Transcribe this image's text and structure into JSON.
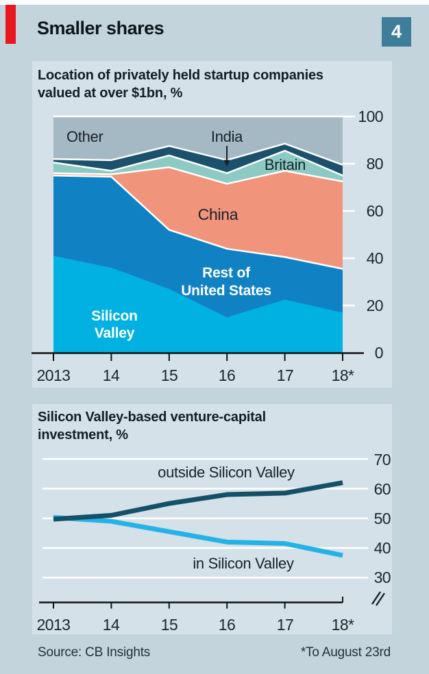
{
  "colors": {
    "page_bg": "#c3d4dc",
    "panel_bg": "#d5e1e8",
    "accent_red": "#e8171f",
    "badge_bg": "#3f7e99",
    "grid": "#ffffff",
    "axis": "#111111",
    "text_dark": "#16222a",
    "text_white": "#ffffff"
  },
  "header": {
    "title": "Smaller shares",
    "badge": "4"
  },
  "top_chart": {
    "subtitle_line1": "Location of privately held startup companies",
    "subtitle_line2": "valued at over $1bn, %",
    "area_labels": {
      "other": "Other",
      "india": "India",
      "britain": "Britain",
      "china": "China",
      "rest_line1": "Rest of",
      "rest_line2": "United States",
      "sv_line1": "Silicon",
      "sv_line2": "Valley"
    },
    "y_labels": [
      "100",
      "80",
      "60",
      "40",
      "20",
      "0"
    ],
    "x_labels": [
      "2013",
      "14",
      "15",
      "16",
      "17",
      "18*"
    ]
  },
  "bottom_chart": {
    "subtitle_line1": "Silicon Valley-based venture-capital",
    "subtitle_line2": "investment, %",
    "line_labels": {
      "outside": "outside Silicon Valley",
      "inside": "in Silicon Valley"
    },
    "y_labels": [
      "70",
      "60",
      "50",
      "40",
      "30"
    ],
    "x_labels": [
      "2013",
      "14",
      "15",
      "16",
      "17",
      "18*"
    ]
  },
  "footer": {
    "source": "Source: CB Insights",
    "note": "*To August 23rd"
  },
  "chart_data": [
    {
      "type": "area",
      "stacked": true,
      "title": "Location of privately held startup companies valued at over $1bn, %",
      "categories": [
        "2013",
        "14",
        "15",
        "16",
        "17",
        "18*"
      ],
      "unit": "%",
      "ylim": [
        0,
        100
      ],
      "y_ticks": [
        100,
        80,
        60,
        40,
        20,
        0
      ],
      "grid": true,
      "legend_position": "in-plot-labels",
      "series": [
        {
          "name": "Silicon Valley",
          "color": "#00b1e1",
          "values": [
            41,
            36,
            27,
            15,
            22.5,
            17
          ]
        },
        {
          "name": "Rest of United States",
          "color": "#1082c3",
          "values": [
            34,
            38.5,
            25,
            29,
            18,
            18.5
          ]
        },
        {
          "name": "China",
          "color": "#f0947c",
          "values": [
            1,
            1,
            26.5,
            27.5,
            36.5,
            37
          ]
        },
        {
          "name": "Britain",
          "color": "#8ccac3",
          "values": [
            4.5,
            1.5,
            5,
            4.5,
            8.5,
            2.5
          ]
        },
        {
          "name": "India",
          "color": "#1b516b",
          "values": [
            1.5,
            4.5,
            4,
            5.5,
            3,
            4.5
          ]
        },
        {
          "name": "Other",
          "color": "#a5b9c4",
          "values": [
            18,
            18.5,
            12.5,
            18.5,
            11.5,
            20.5
          ]
        }
      ]
    },
    {
      "type": "line",
      "title": "Silicon Valley-based venture-capital investment, %",
      "categories": [
        "2013",
        "14",
        "15",
        "16",
        "17",
        "18*"
      ],
      "unit": "%",
      "ylim": [
        21,
        72
      ],
      "y_ticks": [
        70,
        60,
        50,
        40,
        30
      ],
      "axis_break": true,
      "grid": true,
      "legend_position": "in-plot-labels",
      "series": [
        {
          "name": "outside Silicon Valley",
          "color": "#155166",
          "values": [
            49.7,
            51,
            55,
            58,
            58.5,
            62
          ]
        },
        {
          "name": "in Silicon Valley",
          "color": "#25b3e7",
          "values": [
            50.3,
            49,
            45.5,
            42,
            41.5,
            37.5
          ]
        }
      ]
    }
  ]
}
